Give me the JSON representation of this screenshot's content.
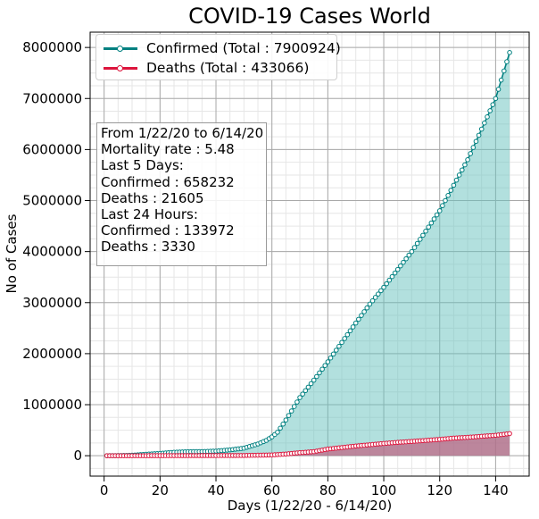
{
  "chart_data": {
    "type": "area",
    "title": "COVID-19 Cases World",
    "xlabel": "Days (1/22/20 - 6/14/20)",
    "ylabel": "No of Cases",
    "xlim": [
      -5,
      152
    ],
    "ylim": [
      -400000,
      8300000
    ],
    "x_ticks": [
      0,
      20,
      40,
      60,
      80,
      100,
      120,
      140
    ],
    "y_ticks": [
      0,
      1000000,
      2000000,
      3000000,
      4000000,
      5000000,
      6000000,
      7000000,
      8000000
    ],
    "grid": true,
    "legend_position": "top-left",
    "series": [
      {
        "name": "Confirmed (Total : 7900924)",
        "color": "#008080",
        "fill": "#66c2bd",
        "x": [
          1,
          5,
          10,
          15,
          20,
          25,
          30,
          35,
          40,
          45,
          50,
          55,
          58,
          60,
          62,
          65,
          70,
          75,
          80,
          85,
          90,
          95,
          100,
          105,
          110,
          115,
          120,
          125,
          130,
          135,
          140,
          145
        ],
        "values": [
          555,
          2900,
          9900,
          28000,
          45000,
          67000,
          79000,
          81000,
          90000,
          114000,
          148000,
          230000,
          300000,
          370000,
          460000,
          700000,
          1140000,
          1480000,
          1840000,
          2220000,
          2600000,
          2970000,
          3300000,
          3650000,
          4000000,
          4400000,
          4800000,
          5300000,
          5800000,
          6400000,
          7000000,
          7900924
        ]
      },
      {
        "name": "Deaths (Total : 433066)",
        "color": "#dc143c",
        "fill": "#c06080",
        "x": [
          1,
          10,
          20,
          30,
          40,
          50,
          60,
          65,
          70,
          75,
          80,
          85,
          90,
          95,
          100,
          105,
          110,
          115,
          120,
          125,
          130,
          135,
          140,
          145
        ],
        "values": [
          17,
          200,
          1000,
          2500,
          3200,
          5000,
          15000,
          33000,
          60000,
          80000,
          130000,
          160000,
          190000,
          215000,
          240000,
          262000,
          280000,
          300000,
          320000,
          345000,
          360000,
          380000,
          400000,
          433066
        ]
      }
    ]
  },
  "annotation_lines": [
    "From 1/22/20 to 6/14/20",
    "Mortality rate : 5.48",
    "Last 5 Days:",
    "Confirmed : 658232",
    "Deaths : 21605",
    "Last 24 Hours:",
    "Confirmed : 133972",
    "Deaths : 3330"
  ]
}
